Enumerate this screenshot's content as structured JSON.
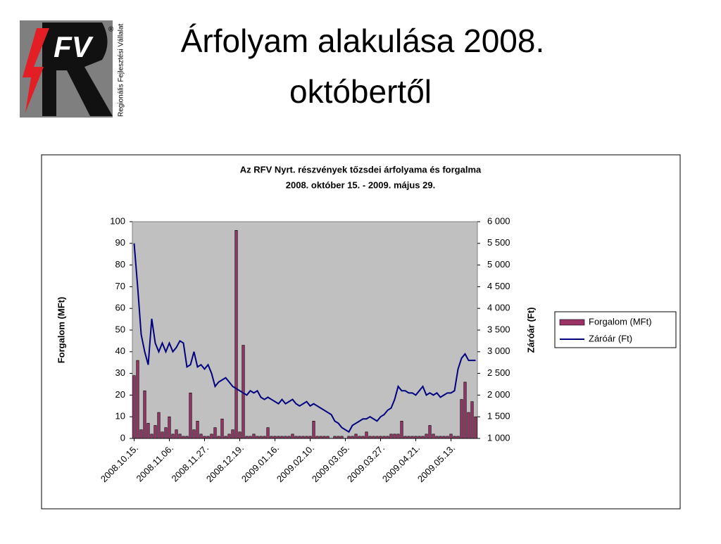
{
  "logo": {
    "letters": "FV",
    "mark": "®",
    "caption": "Regionális Fejlesztési Vállalat"
  },
  "slide_title": [
    "Árfolyam alakulása 2008.",
    "októbertől"
  ],
  "chart_data": {
    "type": "combo",
    "title": "Az RFV Nyrt. részvények tőzsdei árfolyama és forgalma",
    "subtitle": "2008. október 15. - 2009. május 29.",
    "ylabel": "Forgalom (MFt)",
    "y2label": "Záróár (Ft)",
    "categories": [
      "2008.10.15.",
      null,
      null,
      null,
      null,
      null,
      null,
      null,
      null,
      null,
      "2008.11.06.",
      null,
      null,
      null,
      null,
      null,
      null,
      null,
      null,
      null,
      "2008.11.27.",
      null,
      null,
      null,
      null,
      null,
      null,
      null,
      null,
      null,
      "2008.12.19.",
      null,
      null,
      null,
      null,
      null,
      null,
      null,
      null,
      null,
      "2009.01.16.",
      null,
      null,
      null,
      null,
      null,
      null,
      null,
      null,
      null,
      "2009.02.10.",
      null,
      null,
      null,
      null,
      null,
      null,
      null,
      null,
      null,
      "2009.03.05.",
      null,
      null,
      null,
      null,
      null,
      null,
      null,
      null,
      null,
      "2009.03.27.",
      null,
      null,
      null,
      null,
      null,
      null,
      null,
      null,
      null,
      "2009.04.21.",
      null,
      null,
      null,
      null,
      null,
      null,
      null,
      null,
      null,
      "2009.05.13.",
      null,
      null,
      null,
      null,
      null,
      null,
      null
    ],
    "series": [
      {
        "name": "Forgalom (MFt)",
        "type": "bar",
        "color": "#993366",
        "values": [
          29,
          36,
          4,
          22,
          7,
          2,
          6,
          12,
          3,
          5,
          10,
          2,
          4,
          2,
          1,
          1,
          21,
          4,
          8,
          2,
          1,
          1,
          2,
          5,
          1,
          9,
          1,
          2,
          4,
          96,
          3,
          43,
          1,
          1,
          2,
          1,
          1,
          1,
          5,
          1,
          1,
          1,
          1,
          1,
          1,
          2,
          1,
          1,
          1,
          1,
          1,
          8,
          1,
          1,
          1,
          1,
          0,
          1,
          1,
          1,
          0,
          1,
          1,
          2,
          1,
          1,
          3,
          1,
          1,
          1,
          1,
          1,
          1,
          2,
          2,
          2,
          8,
          1,
          1,
          1,
          1,
          1,
          1,
          2,
          6,
          2,
          1,
          1,
          1,
          1,
          2,
          1,
          1,
          18,
          26,
          12,
          17,
          10
        ]
      },
      {
        "name": "Záróár (Ft)",
        "type": "line",
        "axis": "y2",
        "color": "#000080",
        "values": [
          5500,
          4500,
          3400,
          3000,
          2700,
          3760,
          3200,
          3000,
          3200,
          3000,
          3200,
          3000,
          3100,
          3250,
          3200,
          2650,
          2700,
          3000,
          2650,
          2700,
          2600,
          2700,
          2500,
          2200,
          2300,
          2350,
          2400,
          2300,
          2200,
          2150,
          2100,
          2050,
          2000,
          2100,
          2050,
          2100,
          1950,
          1900,
          1950,
          1900,
          1850,
          1800,
          1900,
          1800,
          1850,
          1900,
          1800,
          1750,
          1800,
          1850,
          1750,
          1800,
          1750,
          1700,
          1650,
          1600,
          1550,
          1400,
          1350,
          1250,
          1200,
          1150,
          1300,
          1350,
          1400,
          1450,
          1450,
          1500,
          1450,
          1400,
          1500,
          1550,
          1650,
          1700,
          1900,
          2200,
          2100,
          2100,
          2050,
          2050,
          2000,
          2100,
          2200,
          2000,
          2050,
          2000,
          2050,
          1950,
          2000,
          2050,
          2050,
          2100,
          2600,
          2850,
          2950,
          2800,
          2800,
          2800
        ]
      }
    ],
    "ylim": [
      0,
      100
    ],
    "yticks": [
      0,
      10,
      20,
      30,
      40,
      50,
      60,
      70,
      80,
      90,
      100
    ],
    "y2lim": [
      1000,
      6000
    ],
    "y2ticks": [
      {
        "value": 1000,
        "label": "1 000"
      },
      {
        "value": 1500,
        "label": "1 500"
      },
      {
        "value": 2000,
        "label": "2 000"
      },
      {
        "value": 2500,
        "label": "2 500"
      },
      {
        "value": 3000,
        "label": "3 000"
      },
      {
        "value": 3500,
        "label": "3 500"
      },
      {
        "value": 4000,
        "label": "4 000"
      },
      {
        "value": 4500,
        "label": "4 500"
      },
      {
        "value": 5000,
        "label": "5 000"
      },
      {
        "value": 5500,
        "label": "5 500"
      },
      {
        "value": 6000,
        "label": "6 000"
      }
    ],
    "grid": false,
    "legend": "right",
    "plot_background": "#c0c0c0"
  }
}
